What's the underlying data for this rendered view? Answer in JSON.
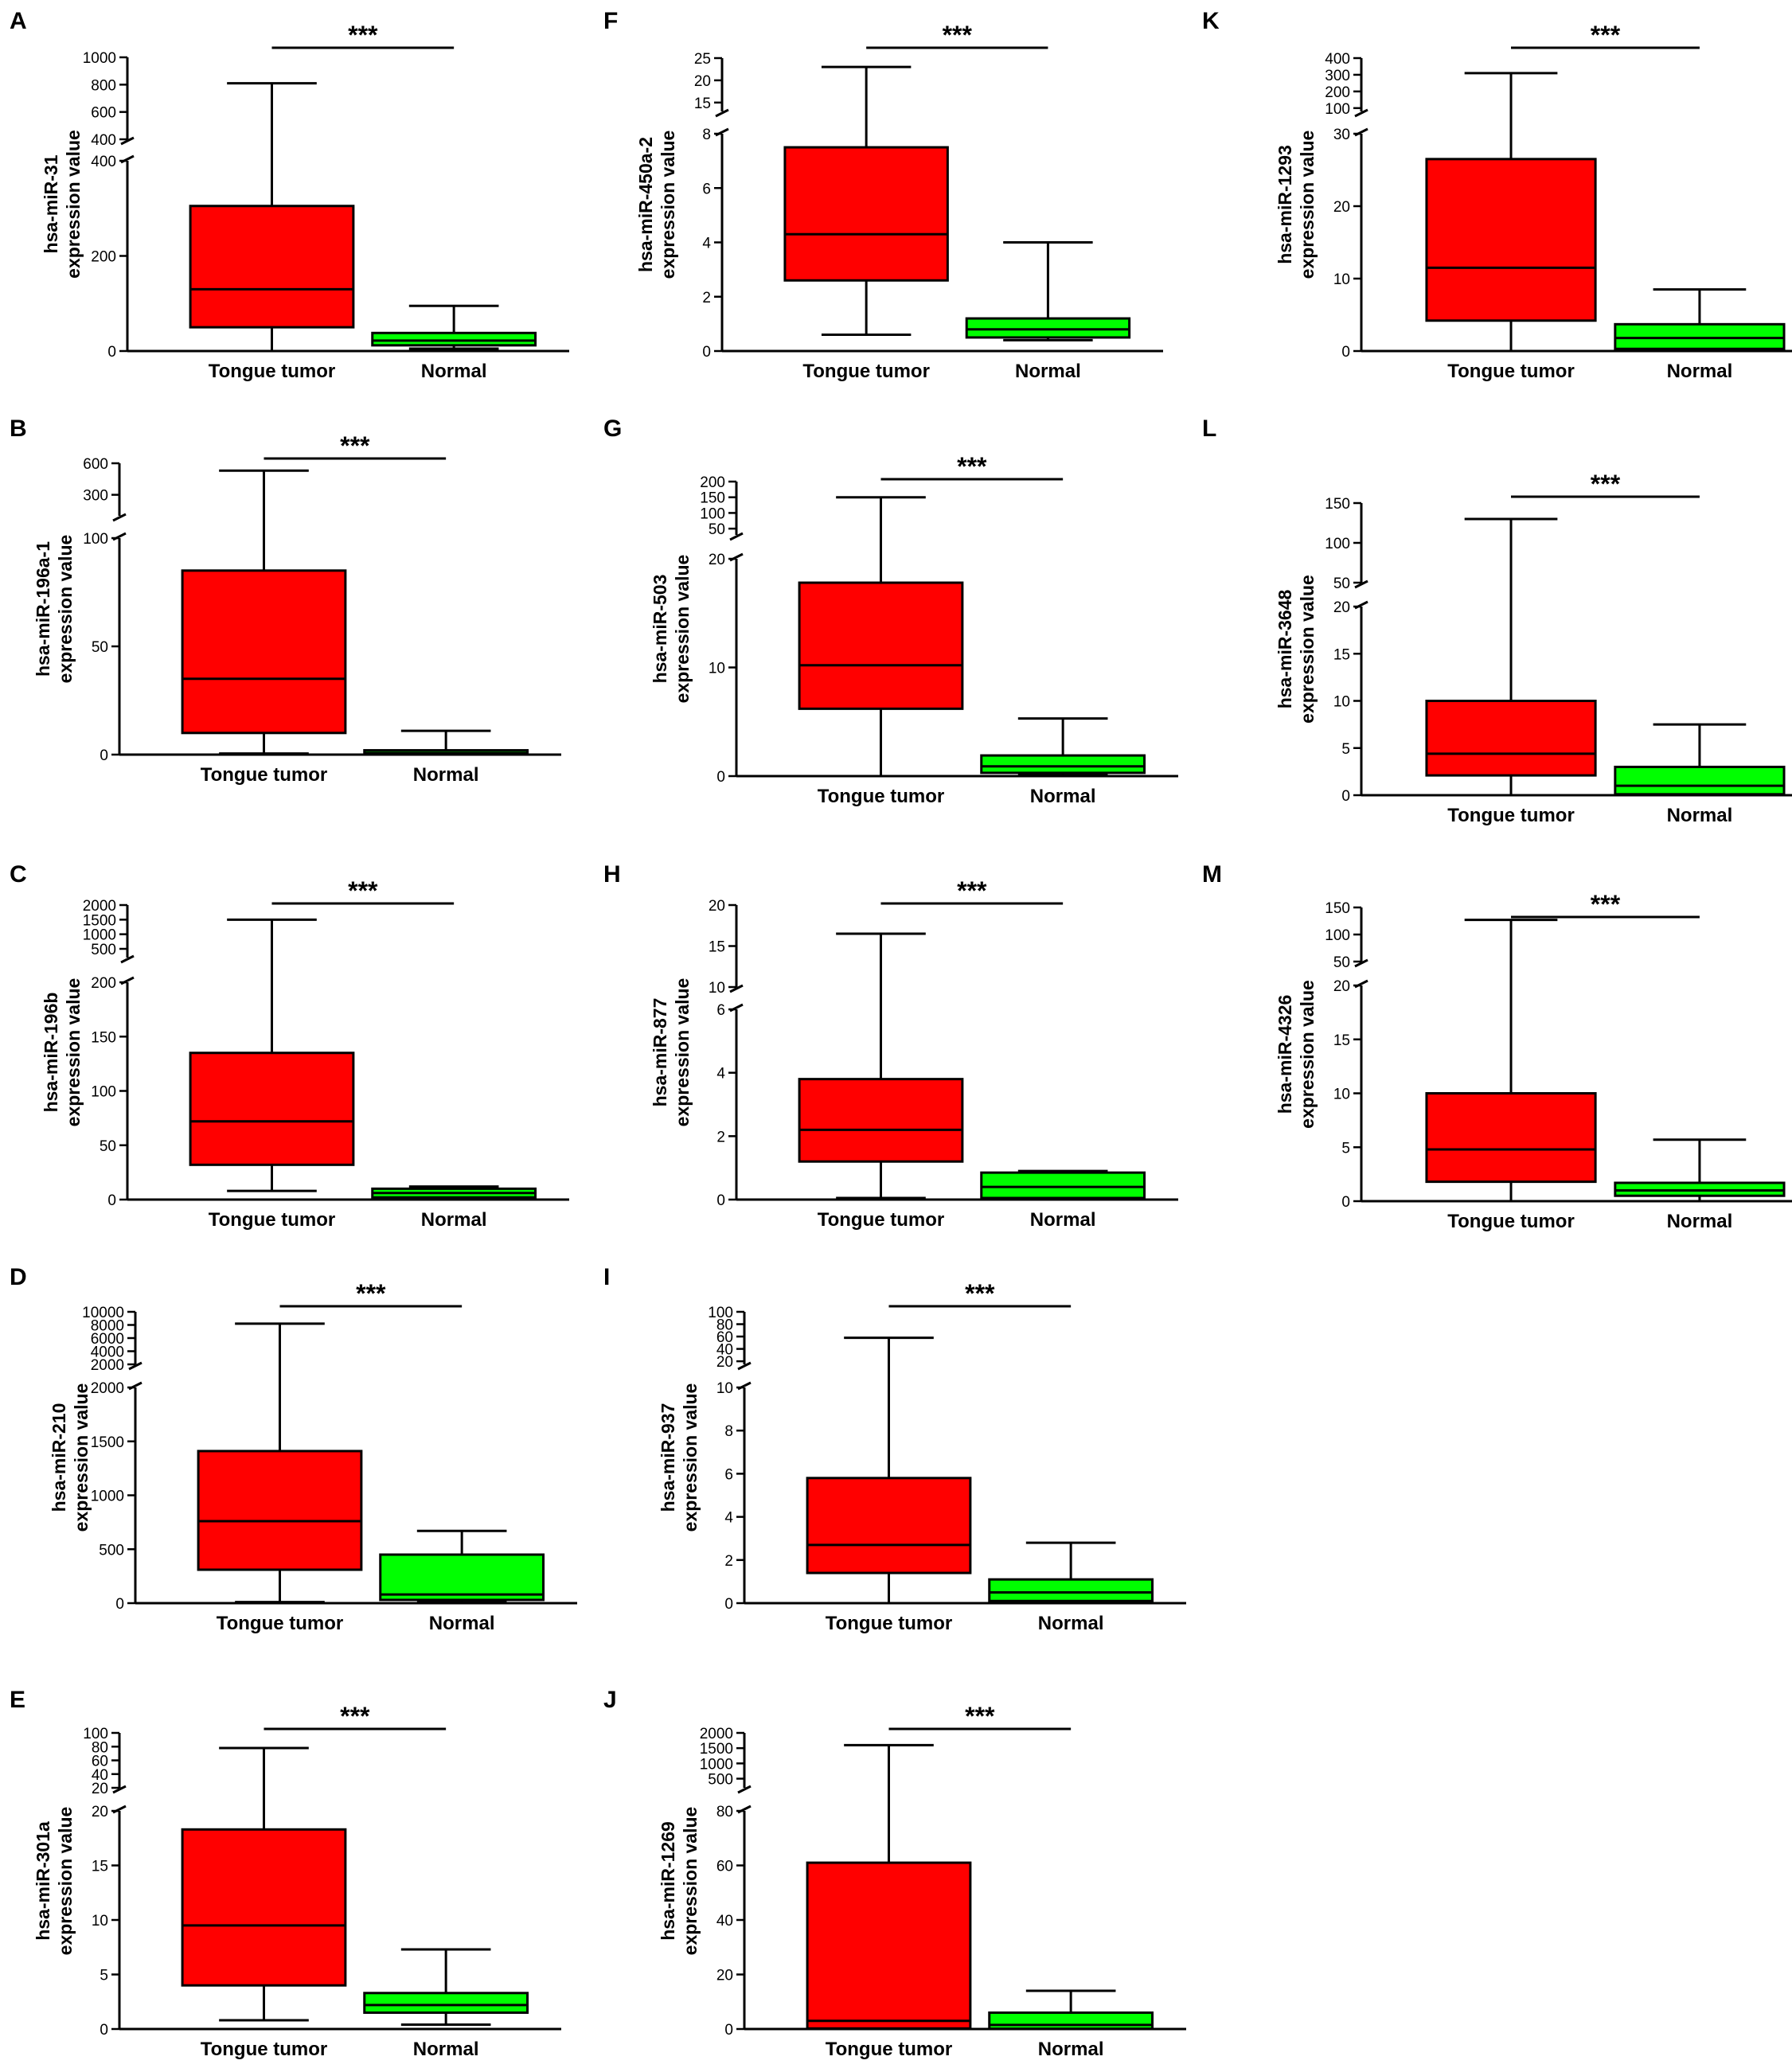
{
  "colors": {
    "tumor": "#ff0000",
    "normal": "#00ff00",
    "line": "#000000"
  },
  "chart_data": [
    {
      "panel": "A",
      "type": "box",
      "ylabel": [
        "hsa-miR-31",
        "expression value"
      ],
      "categories": [
        "Tongue tumor",
        "Normal"
      ],
      "significance": "***",
      "axis": {
        "lower": {
          "range": [
            0,
            400
          ],
          "ticks": [
            0,
            200,
            400
          ]
        },
        "upper": {
          "range": [
            400,
            1000
          ],
          "ticks": [
            400,
            600,
            800,
            1000
          ]
        }
      },
      "boxes": [
        {
          "min": 0,
          "q1": 50,
          "median": 130,
          "q3": 305,
          "max": 810,
          "color": "tumor"
        },
        {
          "min": 5,
          "q1": 12,
          "median": 22,
          "q3": 38,
          "max": 95,
          "color": "normal"
        }
      ]
    },
    {
      "panel": "B",
      "type": "box",
      "ylabel": [
        "hsa-miR-196a-1",
        "expression value"
      ],
      "categories": [
        "Tongue tumor",
        "Normal"
      ],
      "significance": "***",
      "axis": {
        "lower": {
          "range": [
            0,
            100
          ],
          "ticks": [
            0,
            50,
            100
          ]
        },
        "upper": {
          "range": [
            100,
            600
          ],
          "ticks": [
            300,
            600
          ]
        }
      },
      "boxes": [
        {
          "min": 0.5,
          "q1": 10,
          "median": 35,
          "q3": 85,
          "max": 530,
          "color": "tumor"
        },
        {
          "min": 0,
          "q1": 0.2,
          "median": 0.8,
          "q3": 2,
          "max": 11,
          "color": "normal"
        }
      ]
    },
    {
      "panel": "C",
      "type": "box",
      "ylabel": [
        "hsa-miR-196b",
        "expression value"
      ],
      "categories": [
        "Tongue tumor",
        "Normal"
      ],
      "significance": "***",
      "axis": {
        "lower": {
          "range": [
            0,
            200
          ],
          "ticks": [
            0,
            50,
            100,
            150,
            200
          ]
        },
        "upper": {
          "range": [
            200,
            2000
          ],
          "ticks": [
            500,
            1000,
            1500,
            2000
          ]
        }
      },
      "boxes": [
        {
          "min": 8,
          "q1": 32,
          "median": 72,
          "q3": 135,
          "max": 1500,
          "color": "tumor"
        },
        {
          "min": 0,
          "q1": 2,
          "median": 6,
          "q3": 10,
          "max": 12,
          "color": "normal"
        }
      ]
    },
    {
      "panel": "D",
      "type": "box",
      "ylabel": [
        "hsa-miR-210",
        "expression value"
      ],
      "categories": [
        "Tongue tumor",
        "Normal"
      ],
      "significance": "***",
      "axis": {
        "lower": {
          "range": [
            0,
            2000
          ],
          "ticks": [
            0,
            500,
            1000,
            1500,
            2000
          ]
        },
        "upper": {
          "range": [
            2000,
            10000
          ],
          "ticks": [
            2000,
            4000,
            6000,
            8000,
            10000
          ]
        }
      },
      "boxes": [
        {
          "min": 10,
          "q1": 310,
          "median": 760,
          "q3": 1410,
          "max": 8200,
          "color": "tumor"
        },
        {
          "min": 10,
          "q1": 30,
          "median": 80,
          "q3": 450,
          "max": 670,
          "color": "normal"
        }
      ]
    },
    {
      "panel": "E",
      "type": "box",
      "ylabel": [
        "hsa-miR-301a",
        "expression value"
      ],
      "categories": [
        "Tongue tumor",
        "Normal"
      ],
      "significance": "***",
      "axis": {
        "lower": {
          "range": [
            0,
            20
          ],
          "ticks": [
            0,
            5,
            10,
            15,
            20
          ]
        },
        "upper": {
          "range": [
            20,
            100
          ],
          "ticks": [
            20,
            40,
            60,
            80,
            100
          ]
        }
      },
      "boxes": [
        {
          "min": 0.8,
          "q1": 4,
          "median": 9.5,
          "q3": 18.3,
          "max": 78,
          "color": "tumor"
        },
        {
          "min": 0.4,
          "q1": 1.5,
          "median": 2.2,
          "q3": 3.3,
          "max": 7.3,
          "color": "normal"
        }
      ]
    },
    {
      "panel": "F",
      "type": "box",
      "ylabel": [
        "hsa-miR-450a-2",
        "expression value"
      ],
      "categories": [
        "Tongue tumor",
        "Normal"
      ],
      "significance": "***",
      "axis": {
        "lower": {
          "range": [
            0,
            8
          ],
          "ticks": [
            0,
            2,
            4,
            6,
            8
          ]
        },
        "upper": {
          "range": [
            13,
            25
          ],
          "ticks": [
            15,
            20,
            25
          ]
        }
      },
      "boxes": [
        {
          "min": 0.6,
          "q1": 2.6,
          "median": 4.3,
          "q3": 7.5,
          "max": 23,
          "color": "tumor"
        },
        {
          "min": 0.4,
          "q1": 0.5,
          "median": 0.8,
          "q3": 1.2,
          "max": 4,
          "color": "normal"
        }
      ]
    },
    {
      "panel": "G",
      "type": "box",
      "ylabel": [
        "hsa-miR-503",
        "expression value"
      ],
      "categories": [
        "Tongue tumor",
        "Normal"
      ],
      "significance": "***",
      "axis": {
        "lower": {
          "range": [
            0,
            20
          ],
          "ticks": [
            0,
            10,
            20
          ]
        },
        "upper": {
          "range": [
            30,
            200
          ],
          "ticks": [
            50,
            100,
            150,
            200
          ]
        }
      },
      "boxes": [
        {
          "min": 0,
          "q1": 6.2,
          "median": 10.2,
          "q3": 17.8,
          "max": 150,
          "color": "tumor"
        },
        {
          "min": 0.1,
          "q1": 0.3,
          "median": 0.9,
          "q3": 1.9,
          "max": 5.3,
          "color": "normal"
        }
      ]
    },
    {
      "panel": "H",
      "type": "box",
      "ylabel": [
        "hsa-miR-877",
        "expression value"
      ],
      "categories": [
        "Tongue tumor",
        "Normal"
      ],
      "significance": "***",
      "axis": {
        "lower": {
          "range": [
            0,
            6
          ],
          "ticks": [
            0,
            2,
            4,
            6
          ]
        },
        "upper": {
          "range": [
            10,
            20
          ],
          "ticks": [
            10,
            15,
            20
          ]
        }
      },
      "boxes": [
        {
          "min": 0.05,
          "q1": 1.2,
          "median": 2.2,
          "q3": 3.8,
          "max": 16.5,
          "color": "tumor"
        },
        {
          "min": 0,
          "q1": 0.05,
          "median": 0.4,
          "q3": 0.85,
          "max": 0.9,
          "color": "normal"
        }
      ]
    },
    {
      "panel": "I",
      "type": "box",
      "ylabel": [
        "hsa-miR-937",
        "expression value"
      ],
      "categories": [
        "Tongue tumor",
        "Normal"
      ],
      "significance": "***",
      "axis": {
        "lower": {
          "range": [
            0,
            10
          ],
          "ticks": [
            0,
            2,
            4,
            6,
            8,
            10
          ]
        },
        "upper": {
          "range": [
            15,
            100
          ],
          "ticks": [
            20,
            40,
            60,
            80,
            100
          ]
        }
      },
      "boxes": [
        {
          "min": 0,
          "q1": 1.4,
          "median": 2.7,
          "q3": 5.8,
          "max": 58,
          "color": "tumor"
        },
        {
          "min": 0,
          "q1": 0.1,
          "median": 0.5,
          "q3": 1.1,
          "max": 2.8,
          "color": "normal"
        }
      ]
    },
    {
      "panel": "J",
      "type": "box",
      "ylabel": [
        "hsa-miR-1269",
        "expression value"
      ],
      "categories": [
        "Tongue tumor",
        "Normal"
      ],
      "significance": "***",
      "axis": {
        "lower": {
          "range": [
            0,
            80
          ],
          "ticks": [
            0,
            20,
            40,
            60,
            80
          ]
        },
        "upper": {
          "range": [
            200,
            2000
          ],
          "ticks": [
            500,
            1000,
            1500,
            2000
          ]
        }
      },
      "boxes": [
        {
          "min": 0,
          "q1": 0.2,
          "median": 3,
          "q3": 61,
          "max": 1600,
          "color": "tumor"
        },
        {
          "min": 0,
          "q1": 0.1,
          "median": 1.5,
          "q3": 6,
          "max": 14,
          "color": "normal"
        }
      ]
    },
    {
      "panel": "K",
      "type": "box",
      "ylabel": [
        "hsa-miR-1293",
        "expression value"
      ],
      "categories": [
        "Tongue tumor",
        "Normal"
      ],
      "significance": "***",
      "axis": {
        "lower": {
          "range": [
            0,
            30
          ],
          "ticks": [
            0,
            10,
            20,
            30
          ]
        },
        "upper": {
          "range": [
            80,
            400
          ],
          "ticks": [
            100,
            200,
            300,
            400
          ]
        }
      },
      "boxes": [
        {
          "min": 0,
          "q1": 4.2,
          "median": 11.5,
          "q3": 26.5,
          "max": 310,
          "color": "tumor"
        },
        {
          "min": 0,
          "q1": 0.3,
          "median": 1.8,
          "q3": 3.7,
          "max": 8.5,
          "color": "normal"
        }
      ]
    },
    {
      "panel": "L",
      "type": "box",
      "ylabel": [
        "hsa-miR-3648",
        "expression value"
      ],
      "categories": [
        "Tongue tumor",
        "Normal"
      ],
      "significance": "***",
      "axis": {
        "lower": {
          "range": [
            0,
            20
          ],
          "ticks": [
            0,
            5,
            10,
            15,
            20
          ]
        },
        "upper": {
          "range": [
            50,
            150
          ],
          "ticks": [
            50,
            100,
            150
          ]
        }
      },
      "boxes": [
        {
          "min": 0,
          "q1": 2.1,
          "median": 4.4,
          "q3": 10,
          "max": 130,
          "color": "tumor"
        },
        {
          "min": 0,
          "q1": 0.1,
          "median": 1,
          "q3": 3,
          "max": 7.5,
          "color": "normal"
        }
      ]
    },
    {
      "panel": "M",
      "type": "box",
      "ylabel": [
        "hsa-miR-4326",
        "expression value"
      ],
      "categories": [
        "Tongue tumor",
        "Normal"
      ],
      "significance": "***",
      "axis": {
        "lower": {
          "range": [
            0,
            20
          ],
          "ticks": [
            0,
            5,
            10,
            15,
            20
          ]
        },
        "upper": {
          "range": [
            50,
            150
          ],
          "ticks": [
            50,
            100,
            150
          ]
        }
      },
      "boxes": [
        {
          "min": 0,
          "q1": 1.8,
          "median": 4.8,
          "q3": 10,
          "max": 127,
          "color": "tumor"
        },
        {
          "min": 0,
          "q1": 0.5,
          "median": 1,
          "q3": 1.7,
          "max": 5.7,
          "color": "normal"
        }
      ]
    }
  ]
}
